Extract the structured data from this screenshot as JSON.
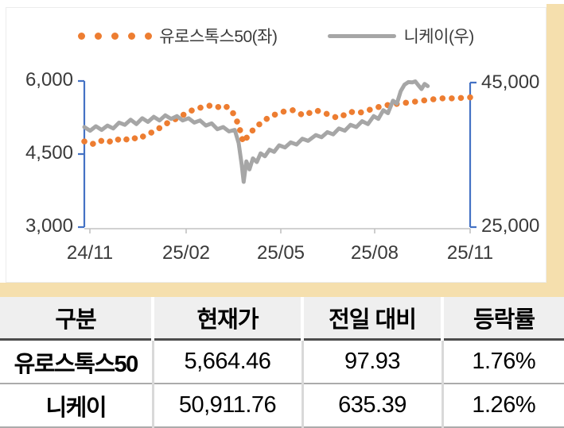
{
  "colors": {
    "tan_frame": "#f5dfad",
    "orange": "#ed7d31",
    "gray": "#a6a6a6",
    "axis_blue": "#4472c4",
    "x_axis_gray": "#c2c2c2",
    "table_header_bg": "#efefef"
  },
  "chart": {
    "legend": [
      {
        "label": "유로스톡스50(좌)",
        "marker": "orange-dotted"
      },
      {
        "label": "니케이(우)",
        "marker": "gray-line"
      }
    ],
    "left_axis_ticks": {
      "t6000": "6,000",
      "t4500": "4,500",
      "t3000": "3,000"
    },
    "right_axis_ticks": {
      "t45000": "45,000",
      "t25000": "25,000"
    },
    "x_ticks": {
      "x0": "24/11",
      "x1": "25/02",
      "x2": "25/05",
      "x3": "25/08",
      "x4": "25/11"
    }
  },
  "chart_data": {
    "type": "line",
    "x_note": "time axis from 2024-11 to 2025-11, points given as fraction 0..1 of axis",
    "x_tick_labels": [
      "24/11",
      "25/02",
      "25/05",
      "25/08",
      "25/11"
    ],
    "left_axis": {
      "range": [
        3000,
        6000
      ],
      "ticks": [
        3000,
        4500,
        6000
      ]
    },
    "right_axis": {
      "range": [
        25000,
        45000
      ],
      "ticks": [
        25000,
        45000
      ]
    },
    "legend_position": "top-center",
    "grid": false,
    "series": [
      {
        "name": "유로스톡스50(좌)",
        "axis": "left",
        "style": "dotted",
        "color": "#ed7d31",
        "points": [
          [
            0.0,
            4760
          ],
          [
            0.02,
            4700
          ],
          [
            0.04,
            4780
          ],
          [
            0.06,
            4730
          ],
          [
            0.08,
            4820
          ],
          [
            0.1,
            4760
          ],
          [
            0.12,
            4850
          ],
          [
            0.14,
            4800
          ],
          [
            0.16,
            4900
          ],
          [
            0.18,
            4960
          ],
          [
            0.2,
            5060
          ],
          [
            0.22,
            5160
          ],
          [
            0.24,
            5230
          ],
          [
            0.26,
            5320
          ],
          [
            0.28,
            5400
          ],
          [
            0.3,
            5450
          ],
          [
            0.32,
            5490
          ],
          [
            0.34,
            5500
          ],
          [
            0.355,
            5430
          ],
          [
            0.37,
            5470
          ],
          [
            0.385,
            5350
          ],
          [
            0.4,
            5100
          ],
          [
            0.412,
            4740
          ],
          [
            0.425,
            4880
          ],
          [
            0.44,
            5020
          ],
          [
            0.455,
            5120
          ],
          [
            0.47,
            5210
          ],
          [
            0.485,
            5280
          ],
          [
            0.5,
            5330
          ],
          [
            0.52,
            5380
          ],
          [
            0.54,
            5400
          ],
          [
            0.555,
            5340
          ],
          [
            0.57,
            5290
          ],
          [
            0.585,
            5350
          ],
          [
            0.6,
            5400
          ],
          [
            0.615,
            5360
          ],
          [
            0.63,
            5320
          ],
          [
            0.645,
            5270
          ],
          [
            0.66,
            5240
          ],
          [
            0.675,
            5310
          ],
          [
            0.69,
            5370
          ],
          [
            0.705,
            5340
          ],
          [
            0.72,
            5360
          ],
          [
            0.74,
            5410
          ],
          [
            0.76,
            5460
          ],
          [
            0.78,
            5500
          ],
          [
            0.8,
            5520
          ],
          [
            0.82,
            5540
          ],
          [
            0.84,
            5560
          ],
          [
            0.86,
            5580
          ],
          [
            0.88,
            5600
          ],
          [
            0.9,
            5620
          ],
          [
            0.92,
            5640
          ],
          [
            0.94,
            5650
          ],
          [
            0.96,
            5640
          ],
          [
            0.98,
            5655
          ],
          [
            1.0,
            5664
          ]
        ]
      },
      {
        "name": "니케이(우)",
        "axis": "right",
        "style": "solid",
        "color": "#a6a6a6",
        "clipped_above": 45000,
        "points": [
          [
            0.0,
            38700
          ],
          [
            0.015,
            38200
          ],
          [
            0.03,
            38800
          ],
          [
            0.045,
            38300
          ],
          [
            0.06,
            38900
          ],
          [
            0.075,
            38500
          ],
          [
            0.09,
            39300
          ],
          [
            0.105,
            39000
          ],
          [
            0.12,
            39700
          ],
          [
            0.135,
            39100
          ],
          [
            0.15,
            39900
          ],
          [
            0.165,
            39400
          ],
          [
            0.18,
            40100
          ],
          [
            0.195,
            39600
          ],
          [
            0.21,
            40300
          ],
          [
            0.225,
            39800
          ],
          [
            0.24,
            40200
          ],
          [
            0.255,
            39600
          ],
          [
            0.27,
            39900
          ],
          [
            0.285,
            39300
          ],
          [
            0.3,
            39600
          ],
          [
            0.315,
            38900
          ],
          [
            0.33,
            39200
          ],
          [
            0.345,
            38400
          ],
          [
            0.36,
            38700
          ],
          [
            0.375,
            38100
          ],
          [
            0.39,
            38300
          ],
          [
            0.4,
            36500
          ],
          [
            0.408,
            33500
          ],
          [
            0.413,
            31200
          ],
          [
            0.42,
            34000
          ],
          [
            0.428,
            32900
          ],
          [
            0.437,
            34400
          ],
          [
            0.447,
            33900
          ],
          [
            0.457,
            35100
          ],
          [
            0.468,
            34700
          ],
          [
            0.48,
            35600
          ],
          [
            0.492,
            35300
          ],
          [
            0.505,
            36200
          ],
          [
            0.52,
            35900
          ],
          [
            0.535,
            36600
          ],
          [
            0.55,
            36300
          ],
          [
            0.565,
            37100
          ],
          [
            0.58,
            36800
          ],
          [
            0.6,
            37600
          ],
          [
            0.615,
            37300
          ],
          [
            0.63,
            38000
          ],
          [
            0.645,
            37700
          ],
          [
            0.66,
            38500
          ],
          [
            0.675,
            38200
          ],
          [
            0.69,
            39000
          ],
          [
            0.705,
            38700
          ],
          [
            0.72,
            39500
          ],
          [
            0.735,
            39100
          ],
          [
            0.75,
            40200
          ],
          [
            0.762,
            39800
          ],
          [
            0.775,
            41000
          ],
          [
            0.787,
            40600
          ],
          [
            0.8,
            42300
          ],
          [
            0.81,
            41900
          ],
          [
            0.82,
            43600
          ],
          [
            0.83,
            44500
          ],
          [
            0.84,
            44850
          ],
          [
            0.85,
            44800
          ],
          [
            0.858,
            44950
          ],
          [
            0.866,
            44400
          ],
          [
            0.874,
            43900
          ],
          [
            0.882,
            44600
          ],
          [
            0.89,
            44300
          ]
        ]
      }
    ]
  },
  "table": {
    "headers": [
      "구분",
      "현재가",
      "전일 대비",
      "등락률"
    ],
    "rows": [
      {
        "name": "유로스톡스50",
        "price": "5,664.46",
        "change": "97.93",
        "pct": "1.76%"
      },
      {
        "name": "니케이",
        "price": "50,911.76",
        "change": "635.39",
        "pct": "1.26%"
      }
    ]
  }
}
